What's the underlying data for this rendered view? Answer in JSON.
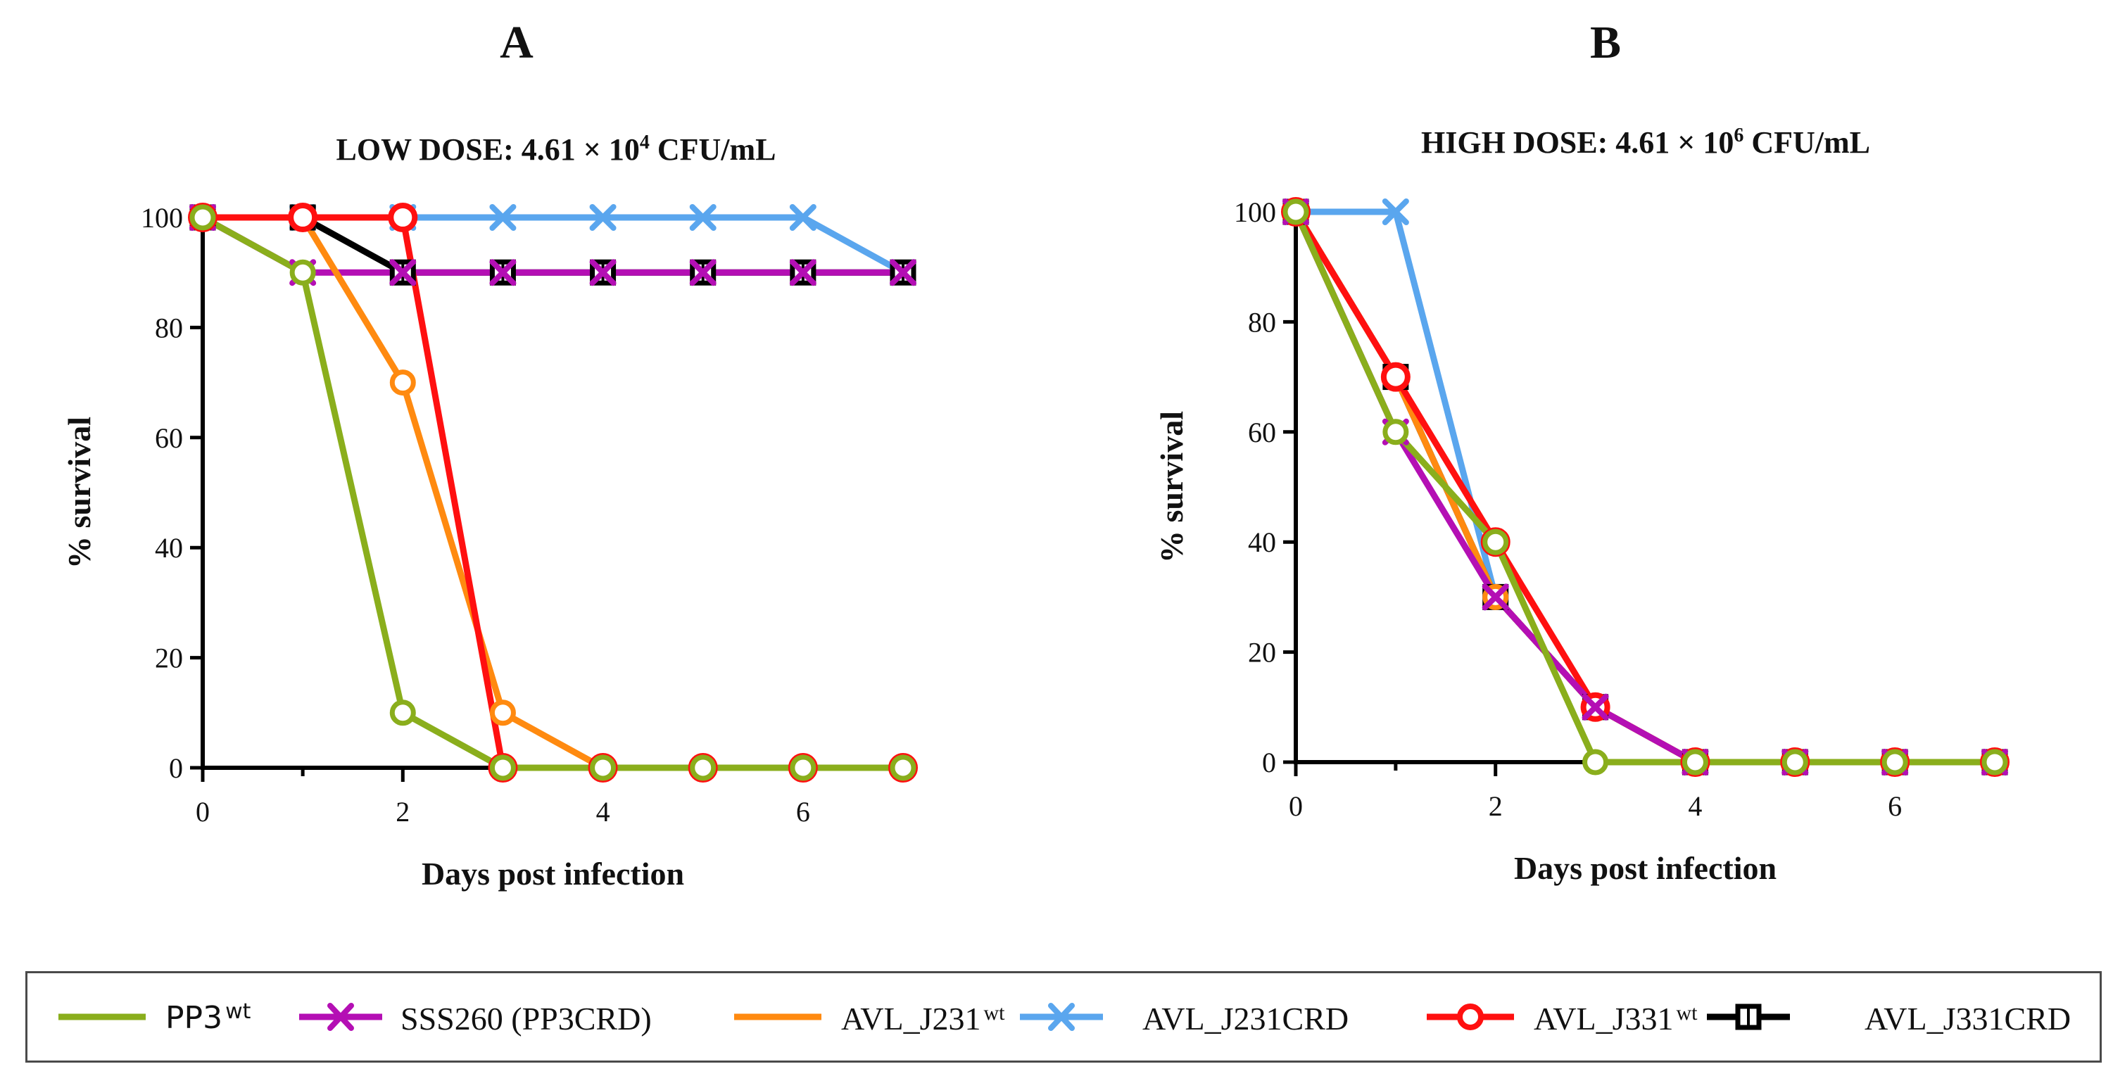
{
  "series_styles": [
    {
      "name": "PP3",
      "sup": "wt",
      "color": "#8aae1c",
      "marker": "circle-thin"
    },
    {
      "name": "SSS260 (PP3CRD)",
      "sup": "",
      "color": "#b40fb4",
      "marker": "x"
    },
    {
      "name": "AVL_J231",
      "sup": "wt",
      "color": "#ff8a10",
      "marker": "circle-thin"
    },
    {
      "name": "AVL_J231CRD",
      "sup": "",
      "color": "#5aa6ee",
      "marker": "x"
    },
    {
      "name": "AVL_J331",
      "sup": "wt",
      "color": "#ff1010",
      "marker": "circle"
    },
    {
      "name": "AVL_J331CRD",
      "sup": "",
      "color": "#000000",
      "marker": "square"
    }
  ],
  "chart_data": [
    {
      "type": "line",
      "panel": "A",
      "title": "LOW DOSE: 4.61 × 10",
      "title_exp": "4",
      "title_unit": " CFU/mL",
      "xlabel": "Days post infection",
      "ylabel": "% survival",
      "x": [
        0,
        1,
        2,
        3,
        4,
        5,
        6,
        7
      ],
      "xlim": [
        0,
        7
      ],
      "ylim": [
        0,
        100
      ],
      "xticks": [
        0,
        2,
        4,
        6
      ],
      "yticks": [
        0,
        20,
        40,
        60,
        80,
        100
      ],
      "series": [
        {
          "name": "AVL_J231CRD",
          "values": [
            100,
            100,
            100,
            100,
            100,
            100,
            100,
            90
          ]
        },
        {
          "name": "AVL_J331CRD",
          "values": [
            100,
            100,
            90,
            90,
            90,
            90,
            90,
            90
          ]
        },
        {
          "name": "SSS260 (PP3CRD)",
          "values": [
            100,
            90,
            90,
            90,
            90,
            90,
            90,
            90
          ]
        },
        {
          "name": "AVL_J231",
          "values": [
            100,
            100,
            70,
            10,
            0,
            0,
            0,
            0
          ]
        },
        {
          "name": "AVL_J331",
          "values": [
            100,
            100,
            100,
            0,
            0,
            0,
            0,
            0
          ]
        },
        {
          "name": "PP3",
          "values": [
            100,
            90,
            10,
            0,
            0,
            0,
            0,
            0
          ]
        }
      ]
    },
    {
      "type": "line",
      "panel": "B",
      "title": "HIGH DOSE: 4.61 × 10",
      "title_exp": "6",
      "title_unit": " CFU/mL",
      "xlabel": "Days post infection",
      "ylabel": "% survival",
      "x": [
        0,
        1,
        2,
        3,
        4,
        5,
        6,
        7
      ],
      "xlim": [
        0,
        7
      ],
      "ylim": [
        0,
        100
      ],
      "xticks": [
        0,
        2,
        4,
        6
      ],
      "yticks": [
        0,
        20,
        40,
        60,
        80,
        100
      ],
      "series": [
        {
          "name": "AVL_J231CRD",
          "values": [
            100,
            100,
            30,
            10,
            0,
            0,
            0,
            0
          ]
        },
        {
          "name": "AVL_J331CRD",
          "values": [
            100,
            70,
            30,
            10,
            0,
            0,
            0,
            0
          ]
        },
        {
          "name": "AVL_J231",
          "values": [
            100,
            70,
            30,
            10,
            0,
            0,
            0,
            0
          ]
        },
        {
          "name": "AVL_J331",
          "values": [
            100,
            70,
            40,
            10,
            0,
            0,
            0,
            0
          ]
        },
        {
          "name": "SSS260 (PP3CRD)",
          "values": [
            100,
            60,
            30,
            10,
            0,
            0,
            0,
            0
          ]
        },
        {
          "name": "PP3",
          "values": [
            100,
            60,
            40,
            0,
            0,
            0,
            0,
            0
          ]
        }
      ]
    }
  ]
}
